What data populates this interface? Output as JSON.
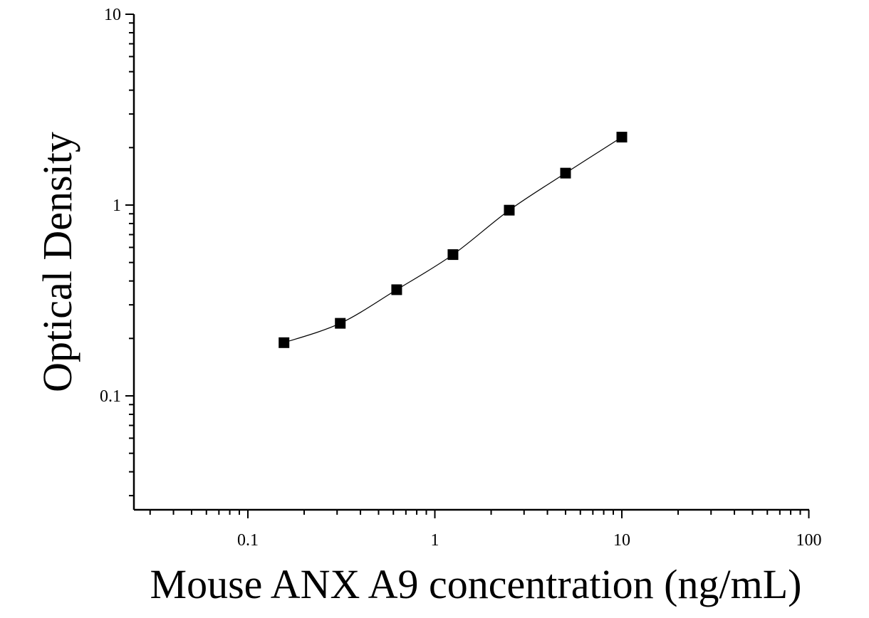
{
  "chart_data": {
    "type": "scatter",
    "xlabel": "Mouse ANX A9 concentration (ng/mL)",
    "ylabel": "Optical Density",
    "x_scale": "log",
    "y_scale": "log",
    "xlim": [
      0.03,
      100
    ],
    "ylim": [
      0.025,
      10
    ],
    "x_ticks": [
      {
        "value": 0.1,
        "label": "0.1"
      },
      {
        "value": 1,
        "label": "1"
      },
      {
        "value": 10,
        "label": "10"
      },
      {
        "value": 100,
        "label": "100"
      }
    ],
    "y_ticks": [
      {
        "value": 0.1,
        "label": "0.1"
      },
      {
        "value": 1,
        "label": "1"
      },
      {
        "value": 10,
        "label": "10"
      }
    ],
    "grid": false,
    "legend": "none",
    "series": [
      {
        "marker": "square",
        "color": "#000000",
        "fit_line": "smooth curve through points",
        "points": [
          {
            "x": 0.156,
            "y": 0.19
          },
          {
            "x": 0.312,
            "y": 0.24
          },
          {
            "x": 0.625,
            "y": 0.36
          },
          {
            "x": 1.25,
            "y": 0.55
          },
          {
            "x": 2.5,
            "y": 0.94
          },
          {
            "x": 5,
            "y": 1.47
          },
          {
            "x": 10,
            "y": 2.27
          }
        ]
      }
    ]
  }
}
